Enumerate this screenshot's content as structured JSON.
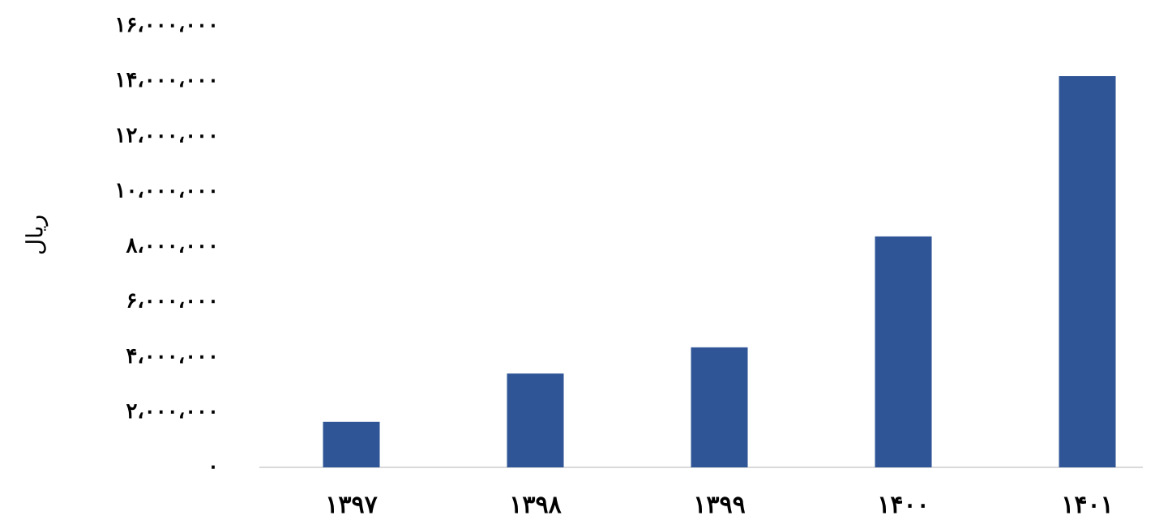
{
  "chart_data": {
    "type": "bar",
    "y_label": "ریال",
    "categories": [
      "۱۳۹۷",
      "۱۳۹۸",
      "۱۳۹۹",
      "۱۴۰۰",
      "۱۴۰۱"
    ],
    "values": [
      1650000,
      3400000,
      4350000,
      8370000,
      14180000
    ],
    "color": "#2f5597",
    "ylim": [
      0,
      16000000
    ],
    "yticks": [
      {
        "value": 0,
        "label": "۰"
      },
      {
        "value": 2000000,
        "label": "۲،۰۰۰،۰۰۰"
      },
      {
        "value": 4000000,
        "label": "۴،۰۰۰،۰۰۰"
      },
      {
        "value": 6000000,
        "label": "۶،۰۰۰،۰۰۰"
      },
      {
        "value": 8000000,
        "label": "۸،۰۰۰،۰۰۰"
      },
      {
        "value": 10000000,
        "label": "۱۰،۰۰۰،۰۰۰"
      },
      {
        "value": 12000000,
        "label": "۱۲،۰۰۰،۰۰۰"
      },
      {
        "value": 14000000,
        "label": "۱۴،۰۰۰،۰۰۰"
      },
      {
        "value": 16000000,
        "label": "۱۶،۰۰۰،۰۰۰"
      }
    ],
    "grid": false
  }
}
